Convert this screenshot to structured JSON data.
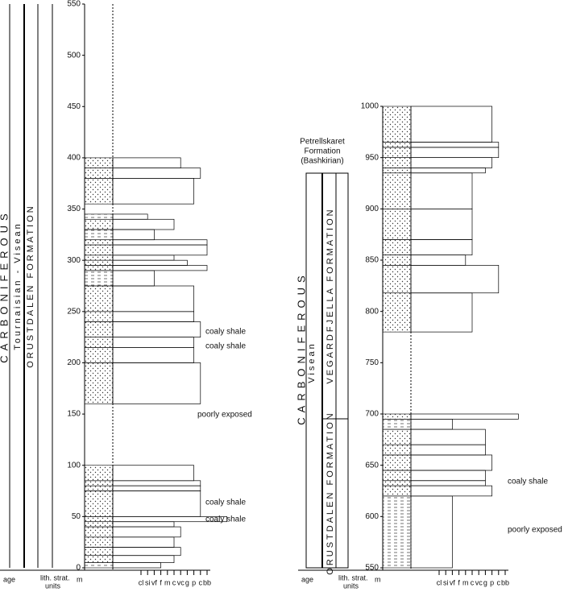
{
  "logs": [
    {
      "ylim": [
        0,
        550
      ],
      "ticks": [
        0,
        50,
        100,
        150,
        200,
        250,
        300,
        350,
        400,
        450,
        500,
        550
      ],
      "beds": [
        [
          0,
          5,
          3
        ],
        [
          5,
          12,
          5
        ],
        [
          12,
          20,
          6
        ],
        [
          20,
          30,
          5
        ],
        [
          30,
          40,
          6
        ],
        [
          40,
          45,
          5
        ],
        [
          45,
          50,
          13
        ],
        [
          50,
          75,
          9
        ],
        [
          75,
          80,
          9
        ],
        [
          80,
          85,
          9
        ],
        [
          85,
          100,
          8
        ],
        [
          160,
          200,
          9
        ],
        [
          200,
          215,
          8
        ],
        [
          215,
          225,
          8
        ],
        [
          225,
          240,
          9
        ],
        [
          240,
          250,
          8
        ],
        [
          250,
          275,
          8
        ],
        [
          275,
          290,
          2
        ],
        [
          290,
          295,
          10
        ],
        [
          295,
          300,
          7
        ],
        [
          300,
          305,
          5
        ],
        [
          305,
          315,
          10
        ],
        [
          315,
          320,
          10
        ],
        [
          320,
          330,
          2
        ],
        [
          330,
          340,
          5
        ],
        [
          340,
          345,
          1
        ],
        [
          355,
          380,
          8
        ],
        [
          380,
          390,
          9
        ],
        [
          390,
          400,
          6
        ]
      ],
      "annotations": [
        "coaly shale",
        "coaly shale",
        "poorly exposed",
        "coaly shale",
        "coaly shale"
      ],
      "columns": [
        "age",
        "lith. strat.",
        "units",
        "m"
      ],
      "grain_labels": [
        "cl",
        "si",
        "vf",
        "f",
        "m",
        "c",
        "vc",
        "g",
        "p",
        "c",
        "bb"
      ],
      "units": [
        "CARBONIFEROUS",
        "Tournaisian - Visean",
        "ORUSTDALEN FORMATION"
      ]
    },
    {
      "ylim": [
        550,
        1000
      ],
      "ticks": [
        550,
        600,
        650,
        700,
        750,
        800,
        850,
        900,
        950,
        1000
      ],
      "beds": [
        [
          550,
          620,
          2
        ],
        [
          620,
          630,
          8
        ],
        [
          630,
          635,
          7
        ],
        [
          635,
          645,
          7
        ],
        [
          645,
          660,
          8
        ],
        [
          660,
          670,
          7
        ],
        [
          670,
          685,
          7
        ],
        [
          685,
          695,
          2
        ],
        [
          695,
          700,
          12
        ],
        [
          780,
          818,
          5
        ],
        [
          818,
          845,
          9
        ],
        [
          845,
          855,
          4
        ],
        [
          855,
          870,
          5
        ],
        [
          870,
          900,
          5
        ],
        [
          900,
          935,
          5
        ],
        [
          935,
          940,
          7
        ],
        [
          940,
          950,
          8
        ],
        [
          950,
          960,
          9
        ],
        [
          960,
          965,
          9
        ],
        [
          965,
          1000,
          8
        ]
      ],
      "annotations": [
        "coaly shale",
        "poorly exposed"
      ],
      "columns": [
        "age",
        "lith. strat.",
        "units",
        "m"
      ],
      "grain_labels": [
        "cl",
        "si",
        "vf",
        "f",
        "m",
        "c",
        "vc",
        "g",
        "p",
        "c",
        "bb"
      ],
      "units": [
        "CARBONIFEROUS",
        "Visean",
        "ORUSTDALEN FORMATION",
        "VEGARDFJELLA FORMATION"
      ],
      "header": [
        "Petrellskaret",
        "Formation",
        "(Bashkirian)"
      ]
    }
  ]
}
